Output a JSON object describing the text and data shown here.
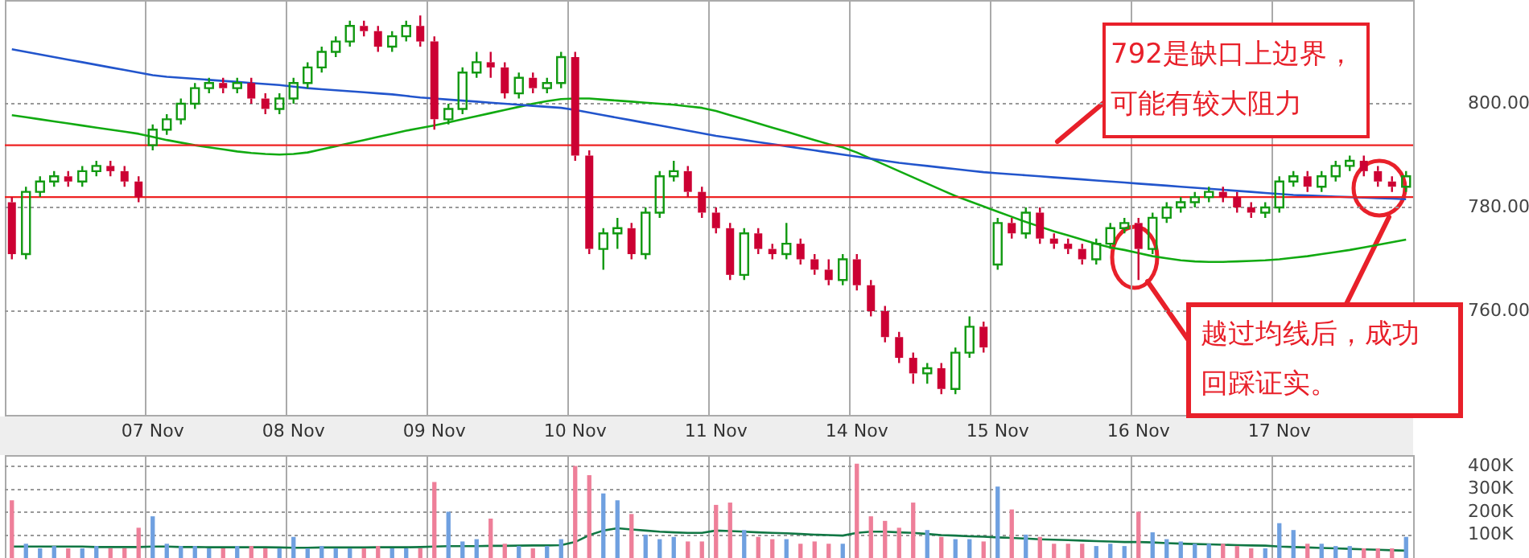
{
  "chart_data": [
    {
      "type": "candlestick",
      "categories": [
        null,
        null,
        null,
        null,
        null,
        null,
        null,
        null,
        null,
        null,
        "07 Nov",
        null,
        null,
        null,
        null,
        null,
        null,
        null,
        null,
        null,
        "08 Nov",
        null,
        null,
        null,
        null,
        null,
        null,
        null,
        null,
        null,
        "09 Nov",
        null,
        null,
        null,
        null,
        null,
        null,
        null,
        null,
        null,
        "10 Nov",
        null,
        null,
        null,
        null,
        null,
        null,
        null,
        null,
        null,
        "11 Nov",
        null,
        null,
        null,
        null,
        null,
        null,
        null,
        null,
        null,
        "14 Nov",
        null,
        null,
        null,
        null,
        null,
        null,
        null,
        null,
        null,
        "15 Nov",
        null,
        null,
        null,
        null,
        null,
        null,
        null,
        null,
        null,
        "16 Nov",
        null,
        null,
        null,
        null,
        null,
        null,
        null,
        null,
        null,
        "17 Nov",
        null,
        null,
        null,
        null,
        null,
        null,
        null,
        null,
        null
      ],
      "ohlc": [
        [
          781,
          782,
          770,
          771
        ],
        [
          771,
          784,
          770,
          783
        ],
        [
          783,
          786,
          782,
          785
        ],
        [
          785,
          787,
          784,
          786
        ],
        [
          786,
          787,
          784,
          785
        ],
        [
          785,
          788,
          784,
          787
        ],
        [
          787,
          789,
          786,
          788
        ],
        [
          788,
          789,
          786,
          787
        ],
        [
          787,
          788,
          784,
          785
        ],
        [
          785,
          786,
          781,
          782
        ],
        [
          792,
          796,
          791,
          795
        ],
        [
          795,
          798,
          794,
          797
        ],
        [
          797,
          801,
          796,
          800
        ],
        [
          800,
          804,
          799,
          803
        ],
        [
          803,
          805,
          802,
          804
        ],
        [
          804,
          805,
          802,
          803
        ],
        [
          803,
          805,
          802,
          804
        ],
        [
          804,
          805,
          800,
          801
        ],
        [
          801,
          802,
          798,
          799
        ],
        [
          799,
          802,
          798,
          801
        ],
        [
          801,
          805,
          800,
          804
        ],
        [
          804,
          808,
          803,
          807
        ],
        [
          807,
          811,
          806,
          810
        ],
        [
          810,
          813,
          809,
          812
        ],
        [
          812,
          816,
          811,
          815
        ],
        [
          815,
          816,
          813,
          814
        ],
        [
          814,
          815,
          810,
          811
        ],
        [
          811,
          814,
          810,
          813
        ],
        [
          813,
          816,
          812,
          815
        ],
        [
          815,
          817,
          811,
          812
        ],
        [
          812,
          813,
          795,
          797
        ],
        [
          797,
          800,
          796,
          799
        ],
        [
          799,
          807,
          798,
          806
        ],
        [
          806,
          810,
          805,
          808
        ],
        [
          808,
          810,
          805,
          807
        ],
        [
          807,
          808,
          801,
          802
        ],
        [
          802,
          806,
          801,
          805
        ],
        [
          805,
          806,
          802,
          803
        ],
        [
          803,
          805,
          802,
          804
        ],
        [
          804,
          810,
          803,
          809
        ],
        [
          809,
          810,
          789,
          790
        ],
        [
          790,
          791,
          771,
          772
        ],
        [
          772,
          776,
          768,
          775
        ],
        [
          775,
          778,
          772,
          776
        ],
        [
          776,
          777,
          770,
          771
        ],
        [
          771,
          780,
          770,
          779
        ],
        [
          779,
          787,
          778,
          786
        ],
        [
          786,
          789,
          785,
          787
        ],
        [
          787,
          788,
          782,
          783
        ],
        [
          783,
          784,
          778,
          779
        ],
        [
          779,
          780,
          775,
          776
        ],
        [
          776,
          777,
          766,
          767
        ],
        [
          767,
          776,
          766,
          775
        ],
        [
          775,
          776,
          771,
          772
        ],
        [
          772,
          773,
          770,
          771
        ],
        [
          771,
          777,
          770,
          773
        ],
        [
          773,
          774,
          769,
          770
        ],
        [
          770,
          771,
          767,
          768
        ],
        [
          768,
          770,
          765,
          766
        ],
        [
          766,
          771,
          765,
          770
        ],
        [
          770,
          771,
          764,
          765
        ],
        [
          765,
          766,
          759,
          760
        ],
        [
          760,
          761,
          754,
          755
        ],
        [
          755,
          756,
          750,
          751
        ],
        [
          751,
          752,
          746,
          748
        ],
        [
          748,
          750,
          746,
          749
        ],
        [
          749,
          750,
          744,
          745
        ],
        [
          745,
          753,
          744,
          752
        ],
        [
          752,
          759,
          751,
          757
        ],
        [
          757,
          758,
          752,
          753
        ],
        [
          769,
          778,
          768,
          777
        ],
        [
          777,
          778,
          774,
          775
        ],
        [
          775,
          780,
          774,
          779
        ],
        [
          779,
          780,
          773,
          774
        ],
        [
          774,
          775,
          772,
          773
        ],
        [
          773,
          774,
          771,
          772
        ],
        [
          772,
          773,
          769,
          770
        ],
        [
          770,
          774,
          769,
          773
        ],
        [
          773,
          777,
          772,
          776
        ],
        [
          776,
          778,
          775,
          777
        ],
        [
          777,
          778,
          766,
          772
        ],
        [
          772,
          779,
          771,
          778
        ],
        [
          778,
          781,
          777,
          780
        ],
        [
          780,
          782,
          779,
          781
        ],
        [
          781,
          783,
          780,
          782
        ],
        [
          782,
          784,
          781,
          783
        ],
        [
          783,
          784,
          781,
          782
        ],
        [
          782,
          783,
          779,
          780
        ],
        [
          780,
          781,
          778,
          779
        ],
        [
          779,
          781,
          778,
          780
        ],
        [
          780,
          786,
          779,
          785
        ],
        [
          785,
          787,
          784,
          786
        ],
        [
          786,
          787,
          783,
          784
        ],
        [
          784,
          787,
          783,
          786
        ],
        [
          786,
          789,
          785,
          788
        ],
        [
          788,
          790,
          787,
          789
        ],
        [
          789,
          790,
          786,
          787
        ],
        [
          787,
          788,
          784,
          785
        ],
        [
          785,
          786,
          783,
          784
        ],
        [
          784,
          787,
          783,
          786
        ]
      ],
      "series": [
        {
          "type": "line",
          "color": "#2255cc",
          "values": [
            810.5,
            810,
            809.5,
            809,
            808.5,
            808,
            807.5,
            807,
            806.5,
            806,
            805.5,
            805.2,
            805,
            804.8,
            804.6,
            804.4,
            804.2,
            804,
            803.8,
            803.6,
            803.3,
            803,
            802.8,
            802.6,
            802.4,
            802.2,
            802,
            801.8,
            801.5,
            801.2,
            801,
            800.8,
            800.6,
            800.4,
            800.2,
            800,
            799.8,
            799.6,
            799.4,
            799.2,
            798.8,
            798.3,
            797.8,
            797.3,
            796.8,
            796.3,
            795.8,
            795.3,
            794.8,
            794.3,
            793.8,
            793.4,
            793,
            792.6,
            792.2,
            791.8,
            791.4,
            791,
            790.6,
            790.2,
            789.8,
            789.4,
            789,
            788.6,
            788.3,
            788,
            787.7,
            787.4,
            787.1,
            786.8,
            786.6,
            786.4,
            786.2,
            786,
            785.8,
            785.6,
            785.4,
            785.2,
            785,
            784.8,
            784.6,
            784.4,
            784.2,
            784,
            783.8,
            783.6,
            783.4,
            783.2,
            783,
            782.8,
            782.6,
            782.4,
            782.3,
            782.2,
            782.1,
            782,
            781.9,
            781.8,
            781.7,
            781.6
          ]
        },
        {
          "type": "line",
          "color": "#11aa11",
          "values": [
            797.8,
            797.4,
            797,
            796.6,
            796.2,
            795.8,
            795.4,
            795,
            794.6,
            794.2,
            793.6,
            793,
            792.5,
            792,
            791.6,
            791.2,
            790.8,
            790.5,
            790.3,
            790.2,
            790.3,
            790.6,
            791.2,
            791.8,
            792.4,
            793,
            793.6,
            794.2,
            794.8,
            795.3,
            795.8,
            796.4,
            797,
            797.6,
            798.2,
            798.8,
            799.4,
            800,
            800.5,
            800.9,
            801,
            801,
            800.8,
            800.6,
            800.4,
            800.2,
            800,
            799.8,
            799.5,
            799.2,
            798.6,
            797.8,
            797,
            796.2,
            795.4,
            794.6,
            793.8,
            793,
            792.2,
            791.6,
            790.6,
            789.4,
            788.2,
            787,
            785.8,
            784.6,
            783.4,
            782.2,
            781.2,
            780.2,
            779.2,
            778.2,
            777.2,
            776.3,
            775.4,
            774.6,
            773.8,
            773,
            772.3,
            771.8,
            771.2,
            770.6,
            770.2,
            769.8,
            769.6,
            769.5,
            769.5,
            769.6,
            769.7,
            769.8,
            770,
            770.3,
            770.6,
            771,
            771.4,
            771.8,
            772.3,
            772.8,
            773.3,
            773.8
          ]
        }
      ],
      "ylim": [
        740,
        820
      ],
      "yticks": [
        {
          "value": 760,
          "label": "760.00"
        },
        {
          "value": 780,
          "label": "780.00"
        },
        {
          "value": 800,
          "label": "800.00"
        }
      ],
      "ref_lines": [
        {
          "axis": "y",
          "value": 792,
          "color": "#ee2222"
        },
        {
          "axis": "y",
          "value": 782,
          "color": "#ee2222"
        }
      ],
      "annotations": [
        "792是缺口上边界，可能有较大阻力",
        "越过均线后，成功回踩证实。"
      ],
      "grid": true,
      "marker": "none"
    },
    {
      "type": "bar",
      "categories": [
        null,
        null,
        null,
        null,
        null,
        null,
        null,
        null,
        null,
        null,
        null,
        null,
        null,
        null,
        null,
        null,
        null,
        null,
        null,
        null,
        null,
        null,
        null,
        null,
        null,
        null,
        null,
        null,
        null,
        null,
        null,
        null,
        null,
        null,
        null,
        null,
        null,
        null,
        null,
        null,
        null,
        null,
        null,
        null,
        null,
        null,
        null,
        null,
        null,
        null,
        null,
        null,
        null,
        null,
        null,
        null,
        null,
        null,
        null,
        null,
        null,
        null,
        null,
        null,
        null,
        null,
        null,
        null,
        null,
        null,
        null,
        null,
        null,
        null,
        null,
        null,
        null,
        null,
        null,
        null,
        null,
        null,
        null,
        null,
        null,
        null,
        null,
        null,
        null,
        null,
        null,
        null,
        null,
        null,
        null,
        null,
        null,
        null,
        null,
        null
      ],
      "series": [
        {
          "type": "bar",
          "values": [
            250000,
            60000,
            40000,
            50000,
            40000,
            40000,
            50000,
            40000,
            40000,
            130000,
            180000,
            60000,
            50000,
            50000,
            40000,
            40000,
            50000,
            50000,
            40000,
            40000,
            90000,
            40000,
            50000,
            40000,
            40000,
            40000,
            50000,
            40000,
            40000,
            40000,
            330000,
            200000,
            70000,
            80000,
            170000,
            60000,
            50000,
            40000,
            50000,
            80000,
            400000,
            360000,
            280000,
            250000,
            190000,
            100000,
            80000,
            90000,
            70000,
            70000,
            230000,
            240000,
            120000,
            90000,
            80000,
            80000,
            60000,
            70000,
            60000,
            60000,
            410000,
            180000,
            160000,
            130000,
            240000,
            120000,
            90000,
            80000,
            80000,
            70000,
            310000,
            210000,
            100000,
            90000,
            60000,
            60000,
            60000,
            50000,
            60000,
            50000,
            200000,
            110000,
            80000,
            70000,
            60000,
            60000,
            60000,
            50000,
            40000,
            40000,
            150000,
            120000,
            60000,
            60000,
            50000,
            50000,
            40000,
            40000,
            40000,
            90000
          ],
          "colors": [
            "#ee7f99",
            "#6fa0e0",
            "#6fa0e0",
            "#6fa0e0",
            "#ee7f99",
            "#6fa0e0",
            "#6fa0e0",
            "#ee7f99",
            "#ee7f99",
            "#ee7f99",
            "#6fa0e0",
            "#6fa0e0",
            "#6fa0e0",
            "#6fa0e0",
            "#6fa0e0",
            "#ee7f99",
            "#6fa0e0",
            "#ee7f99",
            "#ee7f99",
            "#6fa0e0",
            "#6fa0e0",
            "#6fa0e0",
            "#6fa0e0",
            "#6fa0e0",
            "#6fa0e0",
            "#ee7f99",
            "#ee7f99",
            "#6fa0e0",
            "#6fa0e0",
            "#ee7f99",
            "#ee7f99",
            "#6fa0e0",
            "#6fa0e0",
            "#6fa0e0",
            "#ee7f99",
            "#ee7f99",
            "#6fa0e0",
            "#ee7f99",
            "#6fa0e0",
            "#6fa0e0",
            "#ee7f99",
            "#ee7f99",
            "#6fa0e0",
            "#6fa0e0",
            "#ee7f99",
            "#6fa0e0",
            "#6fa0e0",
            "#6fa0e0",
            "#ee7f99",
            "#ee7f99",
            "#ee7f99",
            "#ee7f99",
            "#6fa0e0",
            "#ee7f99",
            "#ee7f99",
            "#6fa0e0",
            "#ee7f99",
            "#ee7f99",
            "#ee7f99",
            "#6fa0e0",
            "#ee7f99",
            "#ee7f99",
            "#ee7f99",
            "#ee7f99",
            "#ee7f99",
            "#6fa0e0",
            "#ee7f99",
            "#6fa0e0",
            "#6fa0e0",
            "#ee7f99",
            "#6fa0e0",
            "#ee7f99",
            "#6fa0e0",
            "#ee7f99",
            "#ee7f99",
            "#ee7f99",
            "#ee7f99",
            "#6fa0e0",
            "#6fa0e0",
            "#6fa0e0",
            "#ee7f99",
            "#6fa0e0",
            "#6fa0e0",
            "#6fa0e0",
            "#6fa0e0",
            "#6fa0e0",
            "#ee7f99",
            "#ee7f99",
            "#ee7f99",
            "#6fa0e0",
            "#6fa0e0",
            "#6fa0e0",
            "#ee7f99",
            "#6fa0e0",
            "#6fa0e0",
            "#6fa0e0",
            "#ee7f99",
            "#ee7f99",
            "#ee7f99",
            "#6fa0e0"
          ]
        },
        {
          "type": "line",
          "color": "#117744",
          "values": [
            50000,
            50000,
            50000,
            50000,
            50000,
            50000,
            48000,
            48000,
            48000,
            48000,
            50000,
            50000,
            48000,
            48000,
            47000,
            47000,
            47000,
            47000,
            47000,
            46000,
            45000,
            45000,
            46000,
            46000,
            46000,
            46000,
            47000,
            47000,
            47000,
            48000,
            50000,
            52000,
            52000,
            52000,
            53000,
            53000,
            54000,
            55000,
            55000,
            56000,
            70000,
            100000,
            120000,
            130000,
            125000,
            120000,
            115000,
            112000,
            110000,
            110000,
            120000,
            118000,
            115000,
            112000,
            110000,
            108000,
            105000,
            102000,
            100000,
            98000,
            110000,
            115000,
            115000,
            112000,
            110000,
            105000,
            100000,
            98000,
            95000,
            93000,
            90000,
            88000,
            85000,
            82000,
            80000,
            78000,
            76000,
            74000,
            72000,
            70000,
            70000,
            68000,
            65000,
            63000,
            61000,
            60000,
            58000,
            56000,
            55000,
            54000,
            50000,
            48000,
            46000,
            44000,
            42000,
            40000,
            38000,
            36000,
            34000,
            32000
          ]
        }
      ],
      "ylim": [
        0,
        450000
      ],
      "yticks": [
        {
          "value": 100000,
          "label": "100K"
        },
        {
          "value": 200000,
          "label": "200K"
        },
        {
          "value": 300000,
          "label": "300K"
        },
        {
          "value": 400000,
          "label": "400K"
        }
      ],
      "grid": true,
      "tick_labels": "y",
      "marker": "none"
    }
  ]
}
